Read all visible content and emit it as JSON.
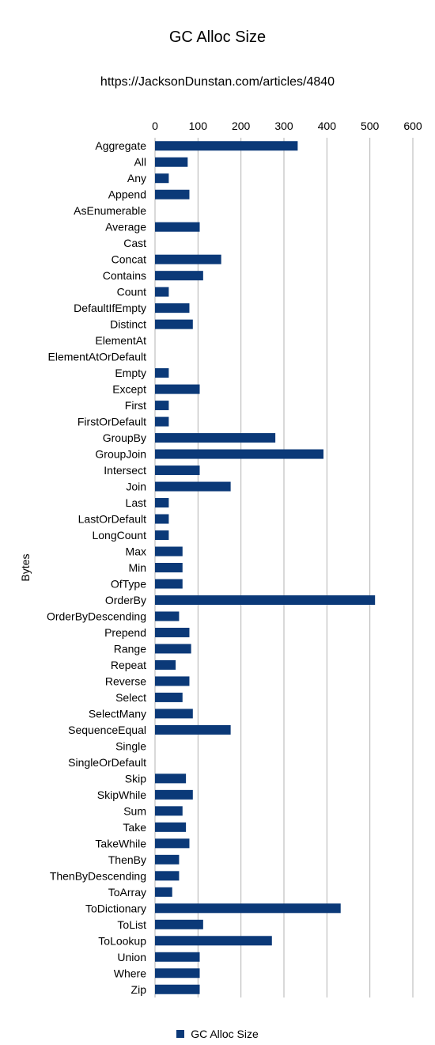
{
  "chart_data": {
    "type": "bar",
    "orientation": "horizontal",
    "title": "GC Alloc Size",
    "subtitle": "https://JacksonDunstan.com/articles/4840",
    "xlabel": "",
    "ylabel": "Bytes",
    "xlim": [
      0,
      600
    ],
    "ticks": [
      "0",
      "100",
      "200",
      "300",
      "400",
      "500",
      "600"
    ],
    "grid": true,
    "legend_position": "bottom",
    "color": "#0b3978",
    "categories": [
      "Aggregate",
      "All",
      "Any",
      "Append",
      "AsEnumerable",
      "Average",
      "Cast",
      "Concat",
      "Contains",
      "Count",
      "DefaultIfEmpty",
      "Distinct",
      "ElementAt",
      "ElementAtOrDefault",
      "Empty",
      "Except",
      "First",
      "FirstOrDefault",
      "GroupBy",
      "GroupJoin",
      "Intersect",
      "Join",
      "Last",
      "LastOrDefault",
      "LongCount",
      "Max",
      "Min",
      "OfType",
      "OrderBy",
      "OrderByDescending",
      "Prepend",
      "Range",
      "Repeat",
      "Reverse",
      "Select",
      "SelectMany",
      "SequenceEqual",
      "Single",
      "SingleOrDefault",
      "Skip",
      "SkipWhile",
      "Sum",
      "Take",
      "TakeWhile",
      "ThenBy",
      "ThenByDescending",
      "ToArray",
      "ToDictionary",
      "ToList",
      "ToLookup",
      "Union",
      "Where",
      "Zip"
    ],
    "series": [
      {
        "name": "GC Alloc Size",
        "values": [
          332,
          76,
          32,
          80,
          0,
          104,
          0,
          154,
          112,
          32,
          80,
          88,
          0,
          0,
          32,
          104,
          32,
          32,
          280,
          392,
          104,
          176,
          32,
          32,
          32,
          64,
          64,
          64,
          512,
          56,
          80,
          84,
          48,
          80,
          64,
          88,
          176,
          0,
          0,
          72,
          88,
          64,
          72,
          80,
          56,
          56,
          40,
          432,
          112,
          272,
          104,
          104,
          104
        ]
      }
    ]
  }
}
